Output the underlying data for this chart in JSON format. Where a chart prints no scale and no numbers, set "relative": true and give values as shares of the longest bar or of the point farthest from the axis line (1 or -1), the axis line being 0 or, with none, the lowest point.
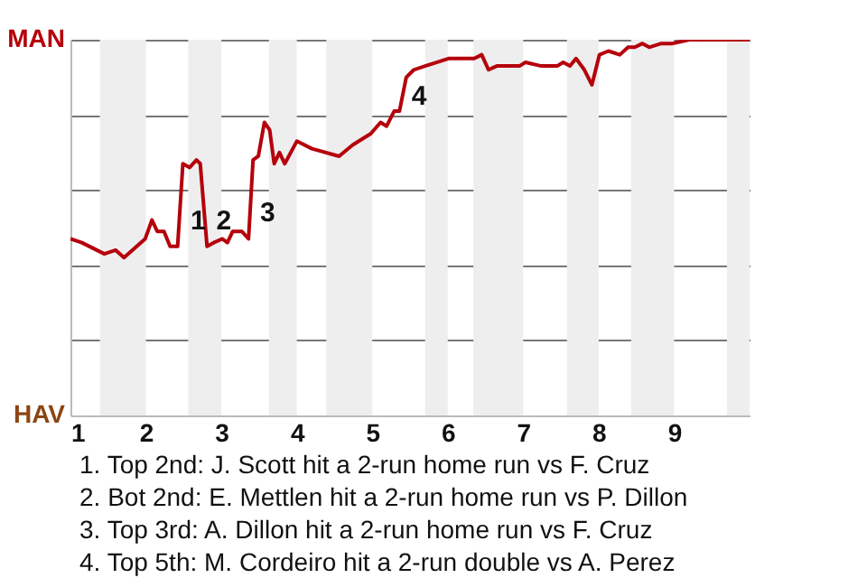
{
  "chart_data": {
    "type": "line",
    "x": [
      1.0,
      1.15,
      1.45,
      1.6,
      1.71,
      1.99,
      2.08,
      2.15,
      2.24,
      2.32,
      2.42,
      2.49,
      2.58,
      2.67,
      2.72,
      2.81,
      2.9,
      3.01,
      3.08,
      3.15,
      3.27,
      3.36,
      3.42,
      3.49,
      3.57,
      3.64,
      3.7,
      3.77,
      3.84,
      4.0,
      4.2,
      4.56,
      4.74,
      4.98,
      5.11,
      5.19,
      5.29,
      5.36,
      5.45,
      5.55,
      5.7,
      6.01,
      6.35,
      6.45,
      6.54,
      6.65,
      6.95,
      7.03,
      7.24,
      7.45,
      7.53,
      7.62,
      7.7,
      7.81,
      7.91,
      8.01,
      8.13,
      8.28,
      8.39,
      8.48,
      8.58,
      8.67,
      8.83,
      8.98,
      9.2,
      9.73,
      10.0
    ],
    "series": [
      {
        "color": "#b5000b",
        "values": [
          0.47,
          0.46,
          0.43,
          0.44,
          0.42,
          0.47,
          0.52,
          0.49,
          0.49,
          0.45,
          0.45,
          0.67,
          0.66,
          0.68,
          0.67,
          0.45,
          0.46,
          0.47,
          0.46,
          0.49,
          0.49,
          0.47,
          0.68,
          0.69,
          0.78,
          0.76,
          0.67,
          0.7,
          0.67,
          0.73,
          0.71,
          0.69,
          0.72,
          0.75,
          0.78,
          0.77,
          0.81,
          0.81,
          0.9,
          0.92,
          0.93,
          0.95,
          0.95,
          0.96,
          0.92,
          0.93,
          0.93,
          0.94,
          0.93,
          0.93,
          0.94,
          0.93,
          0.95,
          0.92,
          0.88,
          0.96,
          0.97,
          0.96,
          0.98,
          0.98,
          0.99,
          0.98,
          0.99,
          0.99,
          1.0,
          1.0,
          1.0
        ]
      }
    ],
    "xlim": [
      1,
      10
    ],
    "xticks": [
      1,
      2,
      3,
      4,
      5,
      6,
      7,
      8,
      9
    ],
    "relative": true,
    "grid": "y",
    "bands": [
      {
        "axis": "x",
        "from": 1.39,
        "to": 2,
        "color": "#eeeeee"
      },
      {
        "axis": "x",
        "from": 2.56,
        "to": 3,
        "color": "#eeeeee"
      },
      {
        "axis": "x",
        "from": 3.63,
        "to": 4,
        "color": "#eeeeee"
      },
      {
        "axis": "x",
        "from": 4.39,
        "to": 5,
        "color": "#eeeeee"
      },
      {
        "axis": "x",
        "from": 5.7,
        "to": 6,
        "color": "#eeeeee"
      },
      {
        "axis": "x",
        "from": 6.34,
        "to": 7,
        "color": "#eeeeee"
      },
      {
        "axis": "x",
        "from": 7.58,
        "to": 8,
        "color": "#eeeeee"
      },
      {
        "axis": "x",
        "from": 8.43,
        "to": 9,
        "color": "#eeeeee"
      },
      {
        "axis": "x",
        "from": 9.7,
        "to": 10,
        "color": "#eeeeee"
      }
    ],
    "annotations": [
      "MAN",
      "HAV",
      {
        "text": "1",
        "x": 2.52,
        "y": 0.52
      },
      {
        "text": "2",
        "x": 2.86,
        "y": 0.52
      },
      {
        "text": "3",
        "x": 3.44,
        "y": 0.54
      },
      {
        "text": "4",
        "x": 5.45,
        "y": 0.85
      },
      "1. Top 2nd: J. Scott hit a 2-run home run vs F. Cruz",
      "2. Bot 2nd: E. Mettlen hit a 2-run home run vs P. Dillon",
      "3. Top 3rd: A. Dillon hit a 2-run home run vs F. Cruz",
      "4. Top 5th: M. Cordeiro hit a 2-run double vs A. Perez"
    ]
  }
}
